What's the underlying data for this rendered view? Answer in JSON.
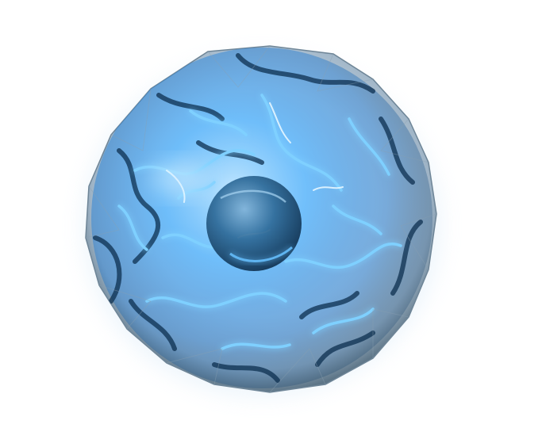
{
  "scene": {
    "subject_icon": "energy-orb-icon",
    "colors": {
      "background": "#ffffff",
      "glow": "#4fb3ff",
      "bright": "#bfe6ff",
      "deep": "#0b3a66",
      "shell": "#e9eef3",
      "core": "#1d4f7a"
    }
  }
}
